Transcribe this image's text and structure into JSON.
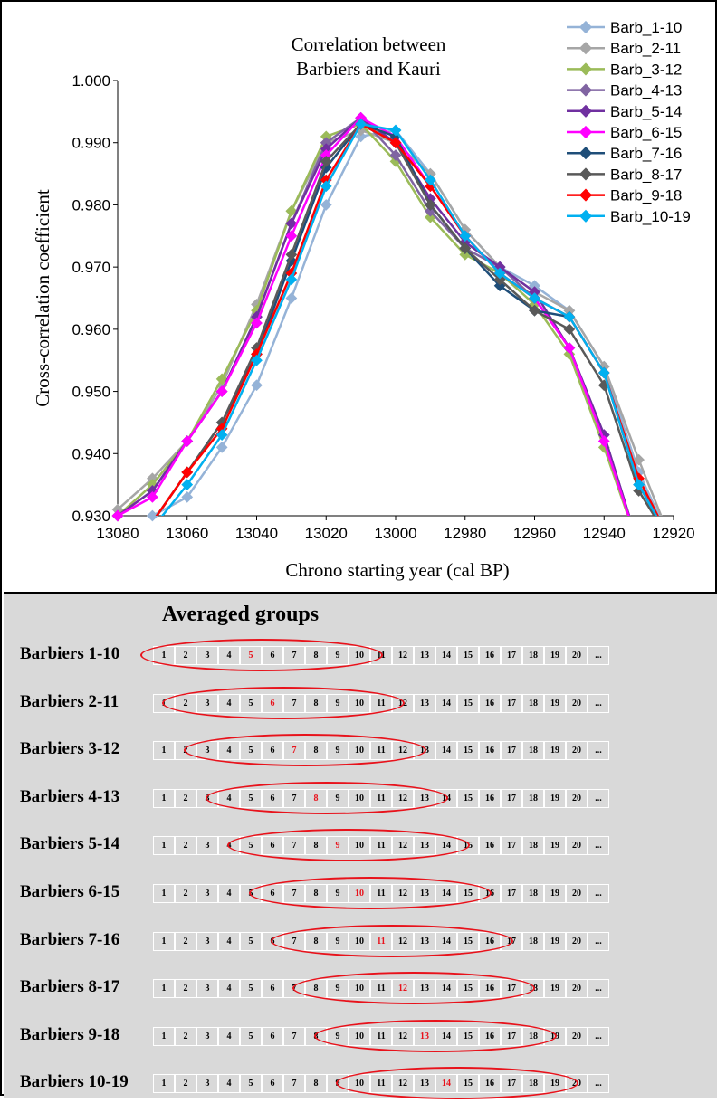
{
  "chart_data": {
    "type": "line",
    "title": "Correlation between\nBarbiers and Kauri",
    "title_lines": [
      "Correlation between",
      "Barbiers and Kauri"
    ],
    "xlabel": "Chrono starting year (cal BP)",
    "ylabel": "Cross-correlation coefficient",
    "xlim": [
      13080,
      12920
    ],
    "ylim": [
      0.93,
      1.0
    ],
    "x_reversed": true,
    "x_ticks": [
      "13080",
      "13060",
      "13040",
      "13020",
      "13000",
      "12980",
      "12960",
      "12940",
      "12920"
    ],
    "y_ticks": [
      "0.930",
      "0.940",
      "0.950",
      "0.960",
      "0.970",
      "0.980",
      "0.990",
      "1.000"
    ],
    "grid": false,
    "legend_position": "top-right",
    "x": [
      13080,
      13070,
      13060,
      13050,
      13040,
      13030,
      13020,
      13010,
      13000,
      12990,
      12980,
      12970,
      12960,
      12950,
      12940,
      12930,
      12920
    ],
    "series": [
      {
        "name": "Barb_1-10",
        "color": "#95b3d7",
        "values": [
          0.925,
          0.93,
          0.933,
          0.941,
          0.951,
          0.965,
          0.98,
          0.991,
          0.992,
          0.985,
          0.976,
          0.97,
          0.967,
          0.963,
          0.954,
          0.937,
          0.925
        ]
      },
      {
        "name": "Barb_2-11",
        "color": "#a6a6a6",
        "values": [
          0.931,
          0.936,
          0.942,
          0.951,
          0.964,
          0.979,
          0.99,
          0.992,
          0.99,
          0.985,
          0.976,
          0.97,
          0.966,
          0.963,
          0.954,
          0.939,
          0.925
        ]
      },
      {
        "name": "Barb_3-12",
        "color": "#9bbb59",
        "values": [
          0.93,
          0.935,
          0.942,
          0.952,
          0.963,
          0.979,
          0.991,
          0.993,
          0.987,
          0.978,
          0.972,
          0.969,
          0.964,
          0.956,
          0.941,
          0.925,
          0.925
        ]
      },
      {
        "name": "Barb_4-13",
        "color": "#8064a2",
        "values": [
          0.93,
          0.934,
          0.942,
          0.95,
          0.962,
          0.977,
          0.99,
          0.994,
          0.988,
          0.979,
          0.973,
          0.97,
          0.965,
          0.957,
          0.943,
          0.925,
          0.925
        ]
      },
      {
        "name": "Barb_5-14",
        "color": "#7030a0",
        "values": [
          0.93,
          0.934,
          0.942,
          0.95,
          0.962,
          0.977,
          0.989,
          0.994,
          0.99,
          0.981,
          0.974,
          0.97,
          0.966,
          0.957,
          0.943,
          0.925,
          0.925
        ]
      },
      {
        "name": "Barb_6-15",
        "color": "#ff00ff",
        "values": [
          0.93,
          0.933,
          0.942,
          0.95,
          0.961,
          0.975,
          0.988,
          0.994,
          0.991,
          0.983,
          0.975,
          0.969,
          0.965,
          0.957,
          0.942,
          0.925,
          0.925
        ]
      },
      {
        "name": "Barb_7-16",
        "color": "#1f4e79",
        "values": [
          0.925,
          0.929,
          0.937,
          0.945,
          0.956,
          0.971,
          0.986,
          0.993,
          0.991,
          0.98,
          0.973,
          0.967,
          0.963,
          0.962,
          0.953,
          0.935,
          0.925
        ]
      },
      {
        "name": "Barb_8-17",
        "color": "#595959",
        "values": [
          0.925,
          0.929,
          0.937,
          0.945,
          0.957,
          0.972,
          0.987,
          0.993,
          0.99,
          0.98,
          0.973,
          0.968,
          0.963,
          0.96,
          0.951,
          0.934,
          0.925
        ]
      },
      {
        "name": "Barb_9-18",
        "color": "#ff0000",
        "values": [
          0.925,
          0.929,
          0.937,
          0.944,
          0.956,
          0.969,
          0.984,
          0.993,
          0.99,
          0.983,
          0.975,
          0.969,
          0.965,
          0.962,
          0.953,
          0.936,
          0.925
        ]
      },
      {
        "name": "Barb_10-19",
        "color": "#00b0f0",
        "values": [
          0.925,
          0.928,
          0.935,
          0.943,
          0.955,
          0.968,
          0.983,
          0.993,
          0.992,
          0.984,
          0.975,
          0.969,
          0.965,
          0.962,
          0.953,
          0.935,
          0.925
        ]
      }
    ]
  },
  "groups": {
    "title": "Averaged groups",
    "cell_labels": [
      "1",
      "2",
      "3",
      "4",
      "5",
      "6",
      "7",
      "8",
      "9",
      "10",
      "11",
      "12",
      "13",
      "14",
      "15",
      "16",
      "17",
      "18",
      "19",
      "20",
      "..."
    ],
    "highlight_color": "#e8121b",
    "rows": [
      {
        "label": "Barbiers 1-10",
        "start": 1,
        "end": 10,
        "center": 5
      },
      {
        "label": "Barbiers 2-11",
        "start": 2,
        "end": 11,
        "center": 6
      },
      {
        "label": "Barbiers 3-12",
        "start": 3,
        "end": 12,
        "center": 7
      },
      {
        "label": "Barbiers 4-13",
        "start": 4,
        "end": 13,
        "center": 8
      },
      {
        "label": "Barbiers 5-14",
        "start": 5,
        "end": 14,
        "center": 9
      },
      {
        "label": "Barbiers 6-15",
        "start": 6,
        "end": 15,
        "center": 10
      },
      {
        "label": "Barbiers 7-16",
        "start": 7,
        "end": 16,
        "center": 11
      },
      {
        "label": "Barbiers 8-17",
        "start": 8,
        "end": 17,
        "center": 12
      },
      {
        "label": "Barbiers 9-18",
        "start": 9,
        "end": 18,
        "center": 13
      },
      {
        "label": "Barbiers 10-19",
        "start": 10,
        "end": 19,
        "center": 14
      }
    ]
  }
}
